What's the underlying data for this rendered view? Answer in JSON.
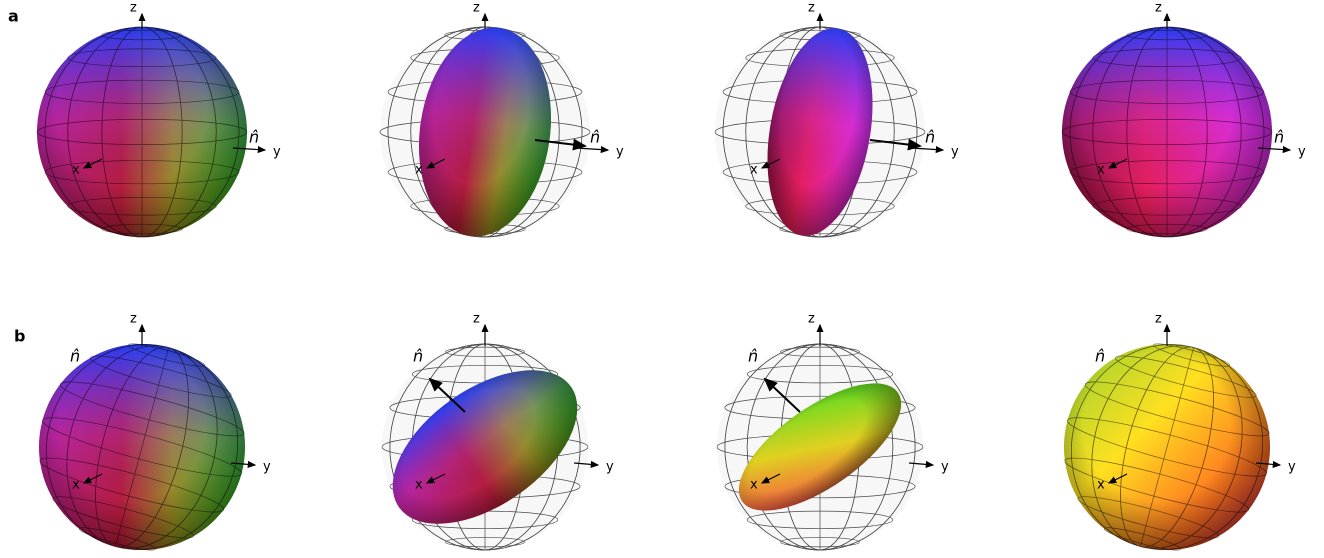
{
  "panels": [
    {
      "label": "a",
      "plots": [
        {
          "z": "z",
          "y": "y",
          "x": "x",
          "n": "n̂"
        },
        {
          "z": "z",
          "y": "y",
          "x": "x",
          "n": "n̂"
        },
        {
          "z": "z",
          "y": "y",
          "x": "x",
          "n": "n̂"
        },
        {
          "z": "z",
          "y": "y",
          "x": "x",
          "n": "n̂"
        }
      ]
    },
    {
      "label": "b",
      "plots": [
        {
          "z": "z",
          "y": "y",
          "x": "x",
          "n": "n̂"
        },
        {
          "z": "z",
          "y": "y",
          "x": "x",
          "n": "n̂"
        },
        {
          "z": "z",
          "y": "y",
          "x": "x",
          "n": "n̂"
        },
        {
          "z": "z",
          "y": "y",
          "x": "x",
          "n": "n̂"
        }
      ]
    }
  ]
}
